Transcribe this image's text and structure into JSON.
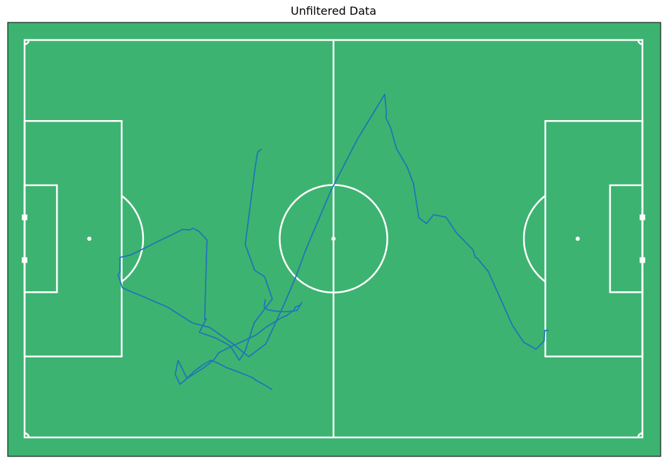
{
  "chart_data": {
    "type": "line",
    "title": "Unfiltered Data",
    "xlabel": "",
    "ylabel": "",
    "xlim": [
      0,
      105
    ],
    "ylim": [
      0,
      68
    ],
    "grid": false,
    "legend": "none",
    "colors": {
      "pitch": "#3db371",
      "lines": "#ffffff",
      "trajectory": "#1f77b4",
      "frame": "#000000"
    },
    "series": [
      {
        "x": [
          40.2,
          39.6,
          39.2,
          37.5,
          37.8,
          39.1,
          40.8,
          42.1,
          39.0,
          37.5,
          36.5,
          34.9,
          32.5,
          29.7,
          30.9,
          30.6,
          31.0,
          29.6,
          28.6,
          28.1,
          26.9,
          23.0,
          18.0,
          16.2,
          16.2,
          15.9,
          16.3,
          16.6,
          19.2,
          24.3,
          28.5,
          31.5,
          35.3,
          38.1,
          41.0,
          44.2,
          46.1,
          47.6,
          48.7,
          52.1,
          56.5,
          61.2,
          61.5,
          61.4,
          62.2,
          63.2,
          65.0,
          66.1,
          67.0,
          68.3,
          69.5,
          71.6,
          73.4,
          76.2,
          76.6,
          76.9,
          78.8,
          82.9,
          84.8,
          86.9,
          88.3,
          88.4,
          89.0
        ],
        "y": [
          49.3,
          48.8,
          46.3,
          33.0,
          32.2,
          28.6,
          27.5,
          23.7,
          19.6,
          14.8,
          13.2,
          15.7,
          17.0,
          18.0,
          20.3,
          20.2,
          33.8,
          35.3,
          35.8,
          35.5,
          35.6,
          33.7,
          31.2,
          30.8,
          28.3,
          27.8,
          26.6,
          25.6,
          24.5,
          22.3,
          19.6,
          18.8,
          16.1,
          13.8,
          16.0,
          23.0,
          27.5,
          31.6,
          34.3,
          42.3,
          50.9,
          58.7,
          55.6,
          54.7,
          53.0,
          49.4,
          46.3,
          43.4,
          37.6,
          36.6,
          38.1,
          37.7,
          35.0,
          32.1,
          30.8,
          30.7,
          28.4,
          19.2,
          16.3,
          15.1,
          16.5,
          18.3,
          18.3
        ]
      },
      {
        "x": [
          42.0,
          41.4,
          40.4,
          39.3,
          38.6,
          37.1,
          35.8,
          34.2,
          32.9,
          31.7,
          30.4,
          28.8,
          27.4,
          26.4,
          25.6,
          26.1,
          27.6,
          30.4,
          31.2,
          32.2,
          33.0,
          34.8,
          37.6,
          39.3,
          40.8,
          42.4,
          43.5,
          44.6,
          45.8,
          46.0,
          46.8,
          47.1,
          46.3,
          44.2,
          42.7,
          41.4,
          40.7,
          40.9
        ],
        "y": [
          8.2,
          8.6,
          9.2,
          9.8,
          10.3,
          10.9,
          11.4,
          12.0,
          12.7,
          13.2,
          12.5,
          11.3,
          9.9,
          9.1,
          10.8,
          13.2,
          10.1,
          11.9,
          12.5,
          13.3,
          14.5,
          15.4,
          16.7,
          17.5,
          18.7,
          19.7,
          20.4,
          20.9,
          21.8,
          22.3,
          22.6,
          23.1,
          21.7,
          21.5,
          21.6,
          21.8,
          22.3,
          23.6
        ]
      }
    ]
  }
}
